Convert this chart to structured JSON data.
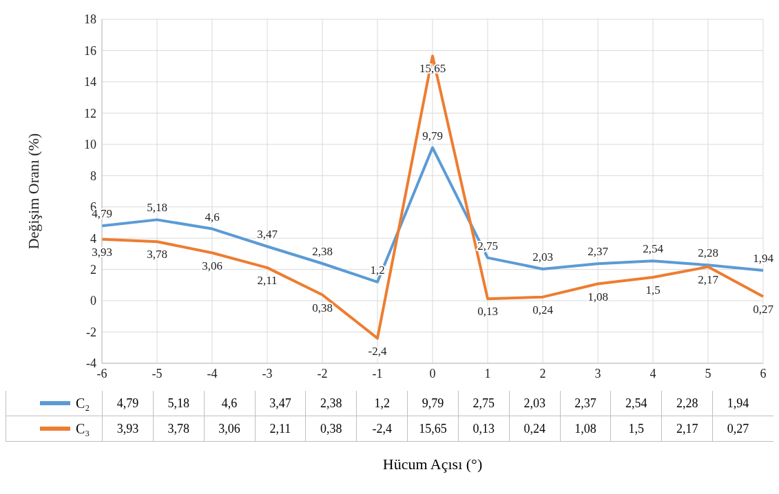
{
  "chart_data": {
    "type": "line",
    "xlabel": "Hücum Açısı (°)",
    "ylabel": "Değişim Oranı (%)",
    "categories": [
      "-6",
      "-5",
      "-4",
      "-3",
      "-2",
      "-1",
      "0",
      "1",
      "2",
      "3",
      "4",
      "5",
      "6"
    ],
    "series": [
      {
        "name": "C₂",
        "color": "#5b9bd5",
        "values": [
          4.79,
          5.18,
          4.6,
          3.47,
          2.38,
          1.2,
          9.79,
          2.75,
          2.03,
          2.37,
          2.54,
          2.28,
          1.94
        ],
        "value_labels": [
          "4,79",
          "5,18",
          "4,6",
          "3,47",
          "2,38",
          "1,2",
          "9,79",
          "2,75",
          "2,03",
          "2,37",
          "2,54",
          "2,28",
          "1,94"
        ]
      },
      {
        "name": "C₃",
        "color": "#ed7d31",
        "values": [
          3.93,
          3.78,
          3.06,
          2.11,
          0.38,
          -2.4,
          15.65,
          0.13,
          0.24,
          1.08,
          1.5,
          2.17,
          0.27
        ],
        "value_labels": [
          "3,93",
          "3,78",
          "3,06",
          "2,11",
          "0,38",
          "-2,4",
          "15,65",
          "0,13",
          "0,24",
          "1,08",
          "1,5",
          "2,17",
          "0,27"
        ]
      }
    ],
    "ylim": [
      -4,
      18
    ],
    "yticks": [
      -4,
      -2,
      0,
      2,
      4,
      6,
      8,
      10,
      12,
      14,
      16,
      18
    ],
    "grid": true,
    "legend": "bottom",
    "marker": "none",
    "line_style": "solid"
  }
}
